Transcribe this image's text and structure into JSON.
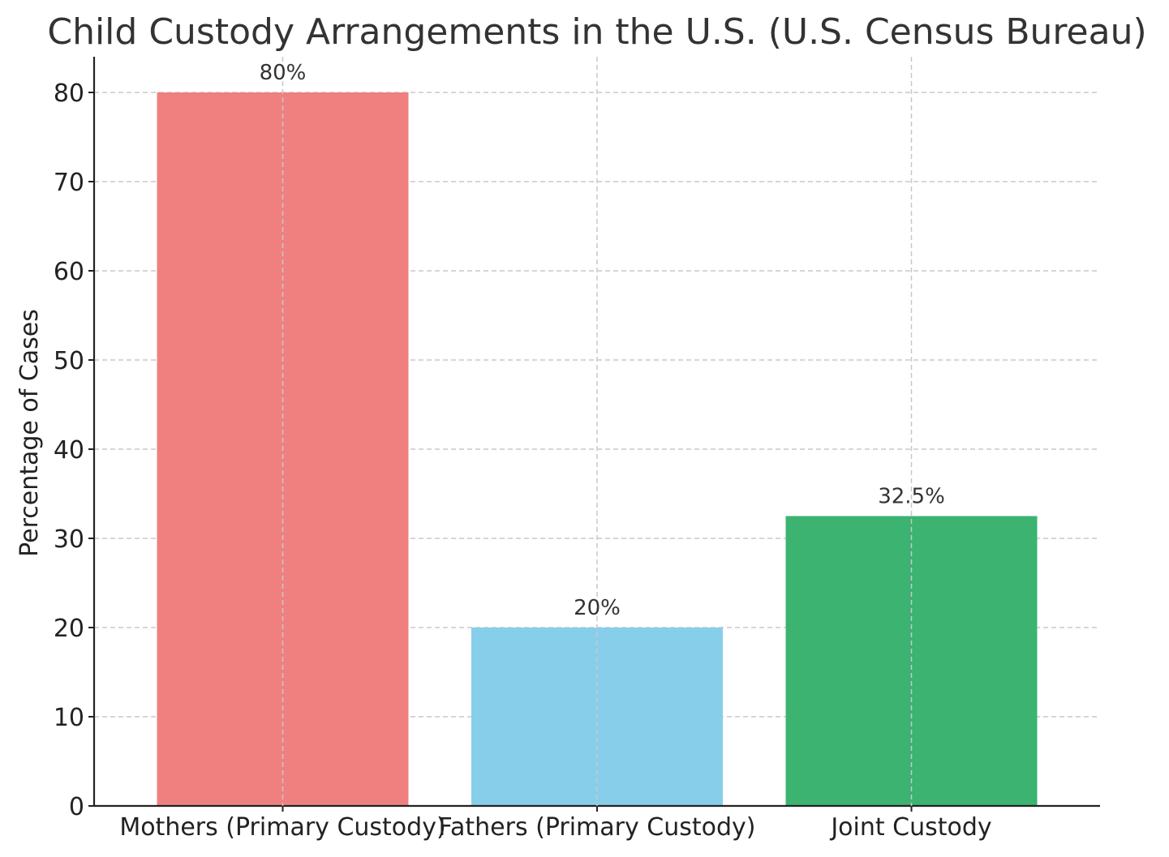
{
  "chart_data": {
    "type": "bar",
    "title": "Child Custody Arrangements in the U.S. (U.S. Census Bureau)",
    "xlabel": "",
    "ylabel": "Percentage of Cases",
    "categories": [
      "Mothers (Primary Custody)",
      "Fathers (Primary Custody)",
      "Joint Custody"
    ],
    "values": [
      80,
      20,
      32.5
    ],
    "data_labels": [
      "80%",
      "20%",
      "32.5%"
    ],
    "colors": [
      "#F08080",
      "#87CEEB",
      "#3CB371"
    ],
    "ylim": [
      0,
      84
    ],
    "yticks": [
      0,
      10,
      20,
      30,
      40,
      50,
      60,
      70,
      80
    ],
    "grid": true,
    "grid_style": "dashed",
    "legend": false
  }
}
